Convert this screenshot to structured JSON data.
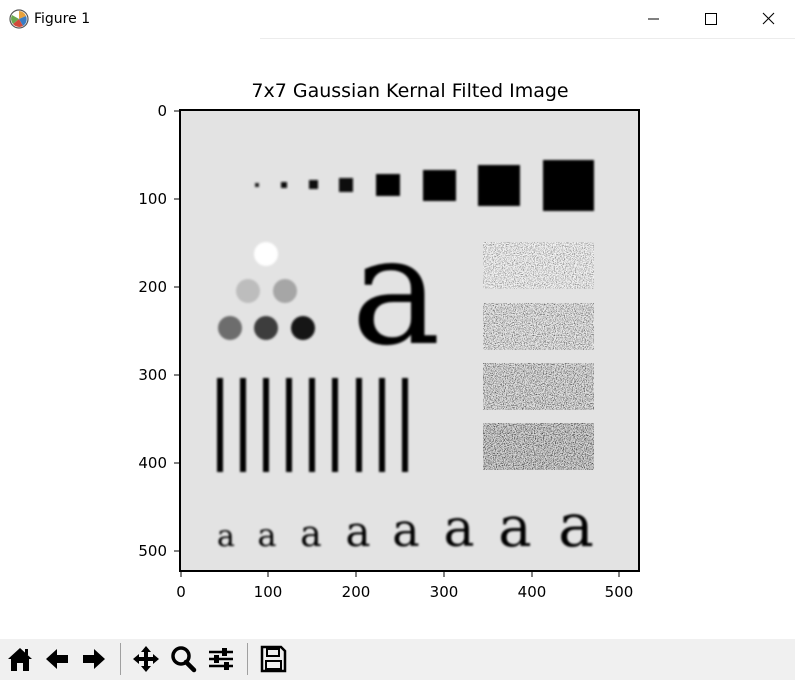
{
  "window": {
    "title": "Figure 1",
    "app_icon": "matplotlib-icon",
    "controls": [
      "minimize-icon",
      "maximize-icon",
      "close-icon"
    ]
  },
  "plot": {
    "title": "7x7 Gaussian Kernal Filted Image",
    "y_ticks": [
      "0",
      "100",
      "200",
      "300",
      "400",
      "500"
    ],
    "x_ticks": [
      "0",
      "100",
      "200",
      "300",
      "400",
      "500"
    ],
    "image_extent": [
      0,
      523,
      523,
      0
    ],
    "image_description_glyph": "a"
  },
  "toolbar": {
    "buttons": [
      "home-icon",
      "back-icon",
      "forward-icon",
      "pan-icon",
      "zoom-icon",
      "configure-subplots-icon",
      "save-icon"
    ]
  }
}
